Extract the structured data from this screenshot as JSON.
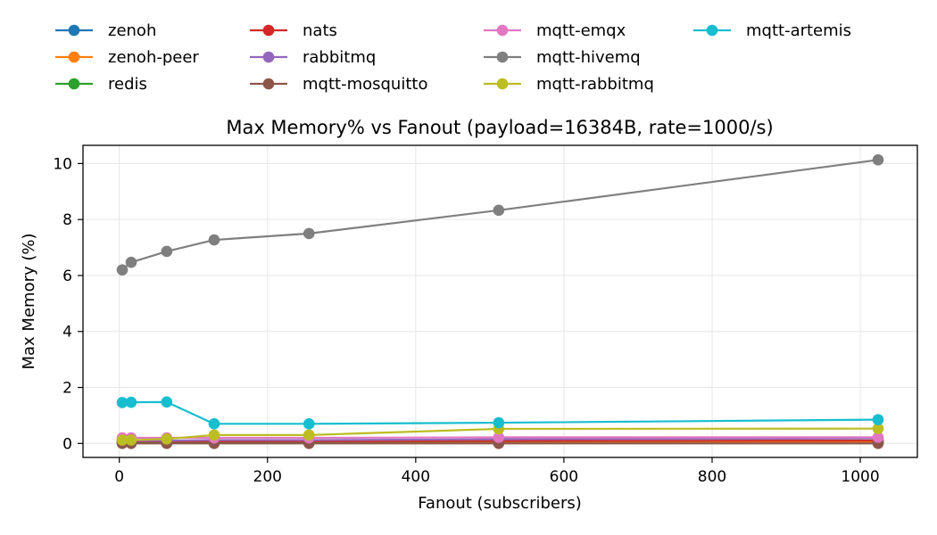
{
  "chart_data": {
    "type": "line",
    "title": "Max Memory% vs Fanout (payload=16384B, rate=1000/s)",
    "xlabel": "Fanout (subscribers)",
    "ylabel": "Max Memory (%)",
    "xlim": [
      -49,
      1077
    ],
    "ylim": [
      -0.5,
      10.65
    ],
    "xticks": [
      0,
      200,
      400,
      600,
      800,
      1000
    ],
    "yticks": [
      0,
      2,
      4,
      6,
      8,
      10
    ],
    "grid": true,
    "legend_position": "top, above plot, 4 columns",
    "x": [
      4,
      16,
      64,
      128,
      256,
      512,
      1024
    ],
    "series": [
      {
        "name": "zenoh",
        "color": "#1f77b4",
        "values": [
          0.02,
          0.02,
          0.02,
          0.02,
          0.02,
          0.03,
          0.03
        ]
      },
      {
        "name": "zenoh-peer",
        "color": "#ff7f0e",
        "values": [
          0.03,
          0.03,
          0.03,
          0.03,
          0.03,
          0.04,
          0.04
        ]
      },
      {
        "name": "redis",
        "color": "#2ca02c",
        "values": [
          0.05,
          0.05,
          0.05,
          0.06,
          0.06,
          0.08,
          0.1
        ]
      },
      {
        "name": "nats",
        "color": "#d62728",
        "values": [
          0.08,
          0.08,
          0.08,
          0.08,
          0.08,
          0.09,
          0.1
        ]
      },
      {
        "name": "rabbitmq",
        "color": "#9467bd",
        "values": [
          0.1,
          0.1,
          0.1,
          0.12,
          0.12,
          0.15,
          0.18
        ]
      },
      {
        "name": "mqtt-mosquitto",
        "color": "#8c564b",
        "values": [
          0.0,
          0.0,
          0.0,
          0.0,
          0.0,
          0.0,
          0.0
        ]
      },
      {
        "name": "mqtt-emqx",
        "color": "#e377c2",
        "values": [
          0.2,
          0.2,
          0.2,
          0.2,
          0.2,
          0.22,
          0.22
        ]
      },
      {
        "name": "mqtt-hivemq",
        "color": "#7f7f7f",
        "values": [
          6.2,
          6.47,
          6.86,
          7.27,
          7.5,
          8.33,
          10.13
        ]
      },
      {
        "name": "mqtt-rabbitmq",
        "color": "#bcbd22",
        "values": [
          0.12,
          0.12,
          0.16,
          0.3,
          0.3,
          0.52,
          0.53
        ]
      },
      {
        "name": "mqtt-artemis",
        "color": "#17becf",
        "values": [
          1.46,
          1.47,
          1.48,
          0.7,
          0.7,
          0.74,
          0.85
        ]
      }
    ]
  }
}
